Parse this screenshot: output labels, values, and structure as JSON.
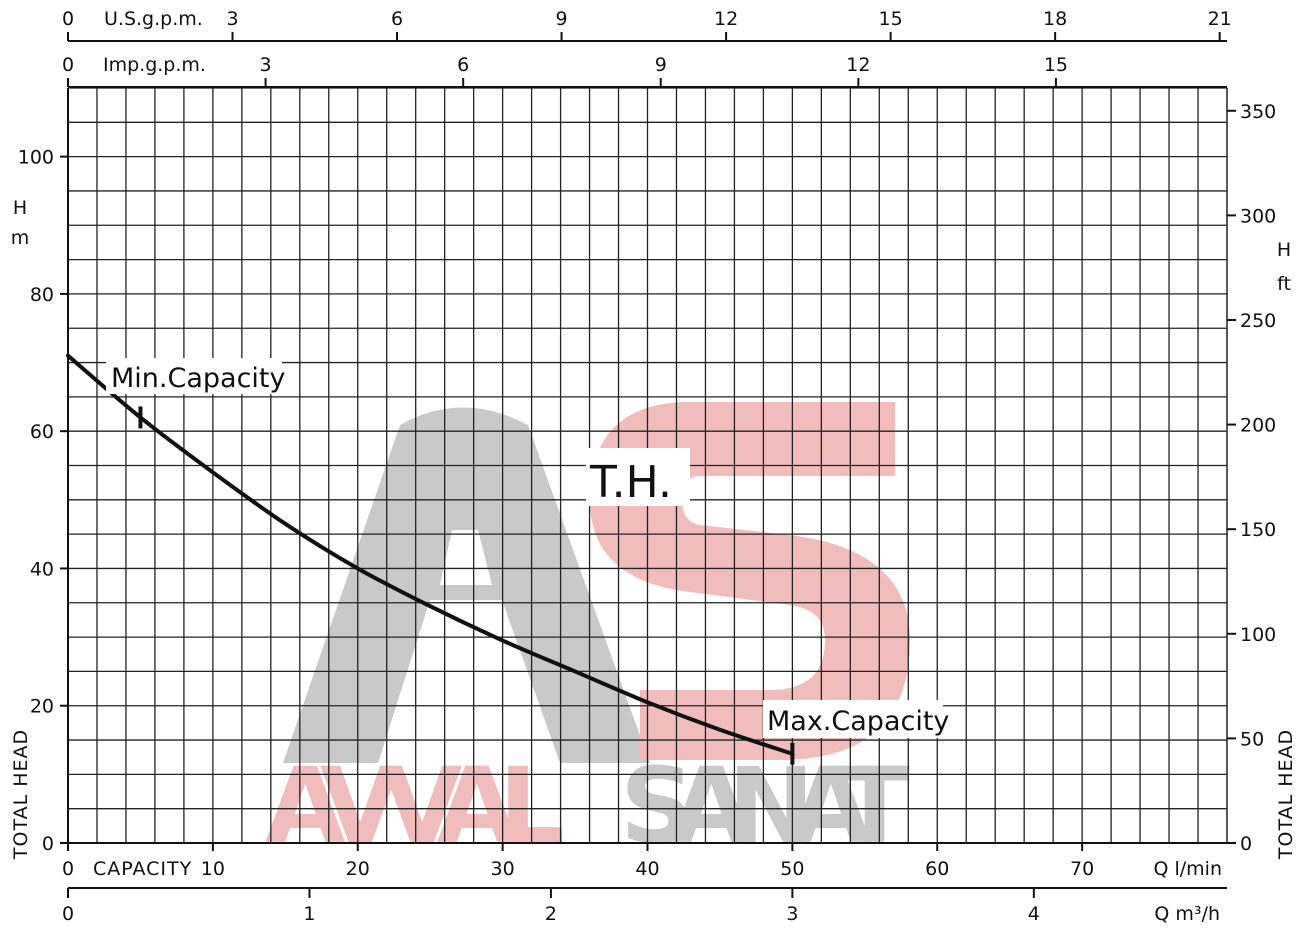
{
  "chart_data": {
    "type": "line",
    "curve_label": "T.H.",
    "series": [
      {
        "name": "",
        "x": [
          0,
          5,
          10,
          15,
          20,
          25,
          30,
          35,
          40,
          45,
          50
        ],
        "y": [
          71,
          62,
          54,
          46.5,
          40,
          34.5,
          29.5,
          25,
          20.5,
          16.5,
          13
        ]
      }
    ],
    "annotations": [
      {
        "text": "Min.Capacity",
        "x": 5,
        "y": 62
      },
      {
        "text": "Max.Capacity",
        "x": 50,
        "y": 13
      }
    ],
    "x_axis_lmin": {
      "label": "CAPACITY",
      "unit": "Q l/min",
      "range": [
        0,
        80
      ],
      "ticks": [
        "0",
        "10",
        "20",
        "30",
        "40",
        "50",
        "60",
        "70"
      ]
    },
    "x_axis_m3h": {
      "unit": "Q m³/h",
      "range": [
        0,
        4.8
      ],
      "ticks": [
        "0",
        "1",
        "2",
        "3",
        "4"
      ]
    },
    "x_axis_usgpm": {
      "unit": "U.S.g.p.m.",
      "range": [
        0,
        21
      ],
      "ticks": [
        "0",
        "3",
        "6",
        "9",
        "12",
        "15",
        "18",
        "21"
      ]
    },
    "x_axis_impgpm": {
      "unit": "Imp.g.p.m.",
      "range": [
        0,
        17.6
      ],
      "ticks": [
        "0",
        "3",
        "6",
        "9",
        "12",
        "15"
      ]
    },
    "y_axis_m": {
      "label": "TOTAL HEAD",
      "unit_top": "H",
      "unit_bottom": "m",
      "range": [
        0,
        100
      ],
      "ticks": [
        "0",
        "20",
        "40",
        "60",
        "80",
        "100"
      ]
    },
    "y_axis_ft": {
      "label": "TOTAL HEAD",
      "unit_top": "H",
      "unit_bottom": "ft",
      "range": [
        0,
        360
      ],
      "ticks": [
        "0",
        "50",
        "100",
        "150",
        "200",
        "250",
        "300",
        "350"
      ]
    },
    "grid": true,
    "watermark": {
      "words": [
        "AVVAL",
        "SANAT"
      ],
      "colors": {
        "gray": "#c9c9c9",
        "red": "#f0bcbc"
      }
    }
  }
}
